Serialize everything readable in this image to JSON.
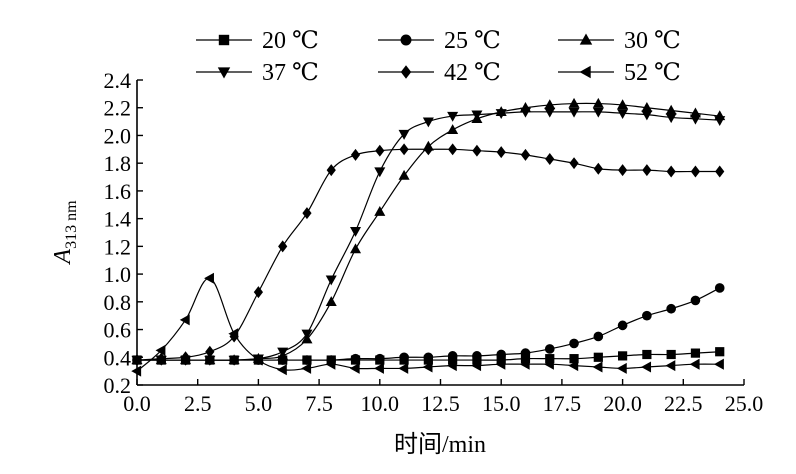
{
  "chart_data": {
    "type": "line",
    "xlabel": "时间/min",
    "ylabel_main": "A",
    "ylabel_sub": "313 nm",
    "xlim": [
      0,
      25
    ],
    "ylim": [
      0.2,
      2.4
    ],
    "xticks": [
      "0.0",
      "2.5",
      "5.0",
      "7.5",
      "10.0",
      "12.5",
      "15.0",
      "17.5",
      "20.0",
      "22.5",
      "25.0"
    ],
    "yticks": [
      "0.2",
      "0.4",
      "0.6",
      "0.8",
      "1.0",
      "1.2",
      "1.4",
      "1.6",
      "1.8",
      "2.0",
      "2.2",
      "2.4"
    ],
    "legend_position": "top",
    "series": [
      {
        "name": "20 ℃",
        "marker": "square",
        "x": [
          0,
          1,
          2,
          3,
          4,
          5,
          6,
          7,
          8,
          9,
          10,
          11,
          12,
          13,
          14,
          15,
          16,
          17,
          18,
          19,
          20,
          21,
          22,
          23,
          24
        ],
        "y": [
          0.38,
          0.38,
          0.38,
          0.38,
          0.38,
          0.38,
          0.38,
          0.38,
          0.38,
          0.38,
          0.38,
          0.38,
          0.38,
          0.38,
          0.38,
          0.38,
          0.39,
          0.39,
          0.39,
          0.4,
          0.41,
          0.42,
          0.42,
          0.43,
          0.44
        ]
      },
      {
        "name": "25 ℃",
        "marker": "circle",
        "x": [
          0,
          1,
          2,
          3,
          4,
          5,
          6,
          7,
          8,
          9,
          10,
          11,
          12,
          13,
          14,
          15,
          16,
          17,
          18,
          19,
          20,
          21,
          22,
          23,
          24
        ],
        "y": [
          0.38,
          0.38,
          0.38,
          0.38,
          0.38,
          0.38,
          0.38,
          0.38,
          0.38,
          0.39,
          0.39,
          0.4,
          0.4,
          0.41,
          0.41,
          0.42,
          0.43,
          0.46,
          0.5,
          0.55,
          0.63,
          0.7,
          0.75,
          0.81,
          0.9
        ]
      },
      {
        "name": "30 ℃",
        "marker": "triangle-up",
        "x": [
          0,
          1,
          2,
          3,
          4,
          5,
          6,
          7,
          8,
          9,
          10,
          11,
          12,
          13,
          14,
          15,
          16,
          17,
          18,
          19,
          20,
          21,
          22,
          23,
          24
        ],
        "y": [
          0.38,
          0.38,
          0.38,
          0.38,
          0.38,
          0.39,
          0.41,
          0.53,
          0.8,
          1.18,
          1.45,
          1.71,
          1.92,
          2.04,
          2.12,
          2.17,
          2.2,
          2.22,
          2.23,
          2.23,
          2.22,
          2.2,
          2.18,
          2.16,
          2.14
        ]
      },
      {
        "name": "37 ℃",
        "marker": "triangle-down",
        "x": [
          0,
          1,
          2,
          3,
          4,
          5,
          6,
          7,
          8,
          9,
          10,
          11,
          12,
          13,
          14,
          15,
          16,
          17,
          18,
          19,
          20,
          21,
          22,
          23,
          24
        ],
        "y": [
          0.38,
          0.38,
          0.38,
          0.38,
          0.38,
          0.39,
          0.44,
          0.57,
          0.96,
          1.31,
          1.74,
          2.01,
          2.1,
          2.14,
          2.15,
          2.16,
          2.17,
          2.17,
          2.17,
          2.17,
          2.16,
          2.15,
          2.13,
          2.12,
          2.11
        ]
      },
      {
        "name": "42 ℃",
        "marker": "diamond",
        "x": [
          0,
          1,
          2,
          3,
          4,
          5,
          6,
          7,
          8,
          9,
          10,
          11,
          12,
          13,
          14,
          15,
          16,
          17,
          18,
          19,
          20,
          21,
          22,
          23,
          24
        ],
        "y": [
          0.38,
          0.39,
          0.4,
          0.44,
          0.55,
          0.87,
          1.2,
          1.44,
          1.75,
          1.86,
          1.89,
          1.9,
          1.9,
          1.9,
          1.89,
          1.88,
          1.86,
          1.83,
          1.8,
          1.76,
          1.75,
          1.75,
          1.74,
          1.74,
          1.74
        ]
      },
      {
        "name": "52 ℃",
        "marker": "triangle-left",
        "x": [
          0,
          1,
          2,
          3,
          4,
          5,
          6,
          7,
          8,
          9,
          10,
          11,
          12,
          13,
          14,
          15,
          16,
          17,
          18,
          19,
          20,
          21,
          22,
          23,
          24
        ],
        "y": [
          0.3,
          0.45,
          0.67,
          0.97,
          0.57,
          0.38,
          0.31,
          0.32,
          0.35,
          0.32,
          0.32,
          0.32,
          0.33,
          0.34,
          0.34,
          0.35,
          0.35,
          0.35,
          0.34,
          0.33,
          0.32,
          0.33,
          0.34,
          0.35,
          0.35
        ]
      }
    ]
  }
}
